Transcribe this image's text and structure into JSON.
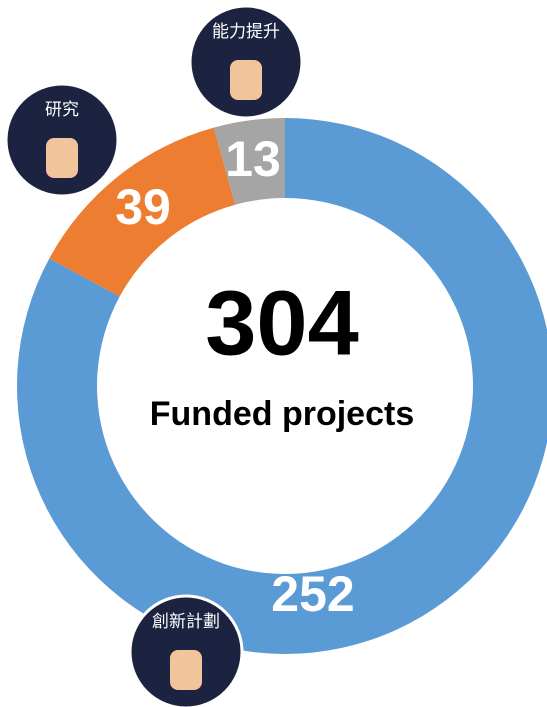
{
  "chart_data": {
    "type": "donut",
    "categories": [
      "創新計劃",
      "研究",
      "能力提升"
    ],
    "values": [
      252,
      39,
      13
    ],
    "colors": [
      "#5b9bd5",
      "#ed7d31",
      "#a5a5a5"
    ],
    "center_value": 304,
    "center_label": "Funded projects"
  }
}
